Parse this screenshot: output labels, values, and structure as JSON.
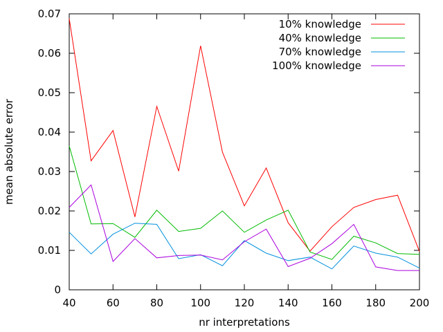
{
  "chart_data": {
    "type": "line",
    "xlabel": "nr interpretations",
    "ylabel": "mean absolute error",
    "xlim": [
      40,
      200
    ],
    "ylim": [
      0,
      0.07
    ],
    "x_ticks": [
      40,
      60,
      80,
      100,
      120,
      140,
      160,
      180,
      200
    ],
    "y_ticks": [
      0,
      0.01,
      0.02,
      0.03,
      0.04,
      0.05,
      0.06,
      0.07
    ],
    "y_tick_labels": [
      "0",
      "0.01",
      "0.02",
      "0.03",
      "0.04",
      "0.05",
      "0.06",
      "0.07"
    ],
    "grid": false,
    "legend_position": "top-right",
    "x": [
      40,
      50,
      60,
      70,
      80,
      90,
      100,
      110,
      120,
      130,
      140,
      150,
      160,
      170,
      180,
      190,
      200
    ],
    "series": [
      {
        "name": "10% knowledge",
        "color": "#ff0000",
        "values": [
          0.0688,
          0.0327,
          0.0404,
          0.0185,
          0.0465,
          0.0301,
          0.0619,
          0.0349,
          0.0213,
          0.0309,
          0.017,
          0.0098,
          0.016,
          0.0209,
          0.0229,
          0.024,
          0.0097
        ]
      },
      {
        "name": "40% knowledge",
        "color": "#00bb00",
        "values": [
          0.0365,
          0.0167,
          0.0168,
          0.0133,
          0.0202,
          0.0148,
          0.0156,
          0.02,
          0.0146,
          0.0177,
          0.0202,
          0.0096,
          0.0077,
          0.0136,
          0.0119,
          0.0092,
          0.009
        ]
      },
      {
        "name": "70% knowledge",
        "color": "#0090dd",
        "values": [
          0.0146,
          0.0091,
          0.0141,
          0.0169,
          0.0166,
          0.0079,
          0.0089,
          0.0061,
          0.0125,
          0.0093,
          0.0074,
          0.0083,
          0.0053,
          0.0111,
          0.0093,
          0.0083,
          0.0055
        ]
      },
      {
        "name": "100% knowledge",
        "color": "#aa00dd",
        "values": [
          0.0209,
          0.0266,
          0.0072,
          0.013,
          0.0081,
          0.0087,
          0.0088,
          0.0076,
          0.0122,
          0.0154,
          0.0059,
          0.008,
          0.0117,
          0.0166,
          0.0058,
          0.0049,
          0.0049
        ]
      }
    ]
  }
}
